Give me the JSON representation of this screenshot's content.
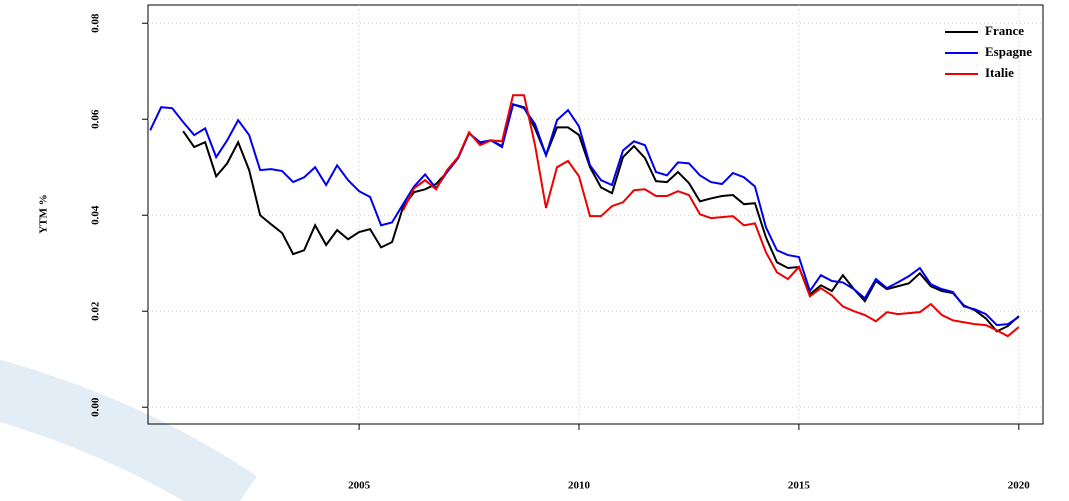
{
  "chart_data": {
    "type": "line",
    "ylabel": "YTM %",
    "x": [
      2000.25,
      2000.5,
      2000.75,
      2001,
      2001.25,
      2001.5,
      2001.75,
      2002,
      2002.25,
      2002.5,
      2002.75,
      2003,
      2003.25,
      2003.5,
      2003.75,
      2004,
      2004.25,
      2004.5,
      2004.75,
      2005,
      2005.25,
      2005.5,
      2005.75,
      2006,
      2006.25,
      2006.5,
      2006.75,
      2007,
      2007.25,
      2007.5,
      2007.75,
      2008,
      2008.25,
      2008.5,
      2008.75,
      2009,
      2009.25,
      2009.5,
      2009.75,
      2010,
      2010.25,
      2010.5,
      2010.75,
      2011,
      2011.25,
      2011.5,
      2011.75,
      2012,
      2012.25,
      2012.5,
      2012.75,
      2013,
      2013.25,
      2013.5,
      2013.75,
      2014,
      2014.25,
      2014.5,
      2014.75,
      2015,
      2015.25,
      2015.5,
      2015.75,
      2016,
      2016.25,
      2016.5,
      2016.75,
      2017,
      2017.25,
      2017.5,
      2017.75,
      2018,
      2018.25,
      2018.5,
      2018.75,
      2019,
      2019.25,
      2019.5,
      2019.75,
      2020
    ],
    "series": [
      {
        "name": "France",
        "color": "#000000",
        "values": [
          null,
          null,
          null,
          0.0575,
          0.0542,
          0.0552,
          0.0481,
          0.0508,
          0.0552,
          0.0494,
          0.04,
          0.0381,
          0.0363,
          0.0319,
          0.0327,
          0.0379,
          0.0338,
          0.0369,
          0.035,
          0.0365,
          0.0371,
          0.0333,
          0.0344,
          0.0417,
          0.0448,
          0.0454,
          0.0465,
          0.049,
          0.0519,
          0.0571,
          0.055,
          0.0556,
          0.0544,
          0.0631,
          0.0625,
          0.0581,
          0.0525,
          0.0583,
          0.0583,
          0.0567,
          0.05,
          0.0458,
          0.0446,
          0.0521,
          0.0544,
          0.0519,
          0.0471,
          0.0469,
          0.049,
          0.0467,
          0.0429,
          0.0435,
          0.044,
          0.0442,
          0.0423,
          0.0425,
          0.0354,
          0.0302,
          0.029,
          0.0292,
          0.0235,
          0.0254,
          0.0242,
          0.0275,
          0.0246,
          0.0221,
          0.0263,
          0.0246,
          0.0252,
          0.0258,
          0.0279,
          0.0252,
          0.0242,
          0.0238,
          0.0212,
          0.0202,
          0.0185,
          0.0158,
          0.0169,
          0.019
        ]
      },
      {
        "name": "Espagne",
        "color": "#0000ee",
        "values": [
          0.0577,
          0.0625,
          0.0623,
          0.0594,
          0.0567,
          0.0581,
          0.0521,
          0.0556,
          0.0598,
          0.0567,
          0.0494,
          0.0496,
          0.0492,
          0.0469,
          0.0479,
          0.05,
          0.0463,
          0.0504,
          0.0473,
          0.045,
          0.0438,
          0.0379,
          0.0385,
          0.0423,
          0.046,
          0.0485,
          0.0456,
          0.049,
          0.0519,
          0.0571,
          0.0552,
          0.0556,
          0.0542,
          0.0631,
          0.0623,
          0.059,
          0.0525,
          0.0598,
          0.0619,
          0.0585,
          0.0504,
          0.0473,
          0.0463,
          0.0535,
          0.0554,
          0.0546,
          0.049,
          0.0483,
          0.051,
          0.0508,
          0.0483,
          0.0469,
          0.0465,
          0.0488,
          0.0479,
          0.046,
          0.0375,
          0.0327,
          0.0317,
          0.0313,
          0.0242,
          0.0275,
          0.0263,
          0.026,
          0.0246,
          0.0227,
          0.0267,
          0.0248,
          0.026,
          0.0273,
          0.029,
          0.0256,
          0.0246,
          0.024,
          0.021,
          0.0204,
          0.0194,
          0.0171,
          0.0173,
          0.0188
        ]
      },
      {
        "name": "Italie",
        "color": "#ee0000",
        "values": [
          null,
          null,
          null,
          null,
          null,
          null,
          null,
          null,
          null,
          null,
          null,
          null,
          null,
          null,
          null,
          null,
          null,
          null,
          null,
          null,
          null,
          null,
          null,
          0.041,
          0.0456,
          0.0473,
          0.0454,
          0.0494,
          0.0521,
          0.0573,
          0.0546,
          0.0556,
          0.0554,
          0.065,
          0.065,
          0.0546,
          0.0415,
          0.05,
          0.0513,
          0.0481,
          0.0398,
          0.0398,
          0.0419,
          0.0427,
          0.0452,
          0.0454,
          0.044,
          0.044,
          0.045,
          0.0442,
          0.0402,
          0.0394,
          0.0396,
          0.0398,
          0.0379,
          0.0383,
          0.0323,
          0.0281,
          0.0267,
          0.0292,
          0.0231,
          0.0248,
          0.0233,
          0.021,
          0.02,
          0.0192,
          0.0179,
          0.0198,
          0.0194,
          0.0196,
          0.0198,
          0.0215,
          0.0192,
          0.0181,
          0.0177,
          0.0173,
          0.0171,
          0.016,
          0.0148,
          0.0167
        ]
      }
    ],
    "xlim": [
      2000.2,
      2020.55
    ],
    "ylim": [
      -0.0035,
      0.0838
    ],
    "xticks": [
      2005,
      2010,
      2015,
      2020
    ],
    "yticks": [
      {
        "value": 0,
        "label": "0.00"
      },
      0.02,
      0.04,
      0.06,
      0.08
    ],
    "grid": true,
    "legend": "top-right"
  }
}
